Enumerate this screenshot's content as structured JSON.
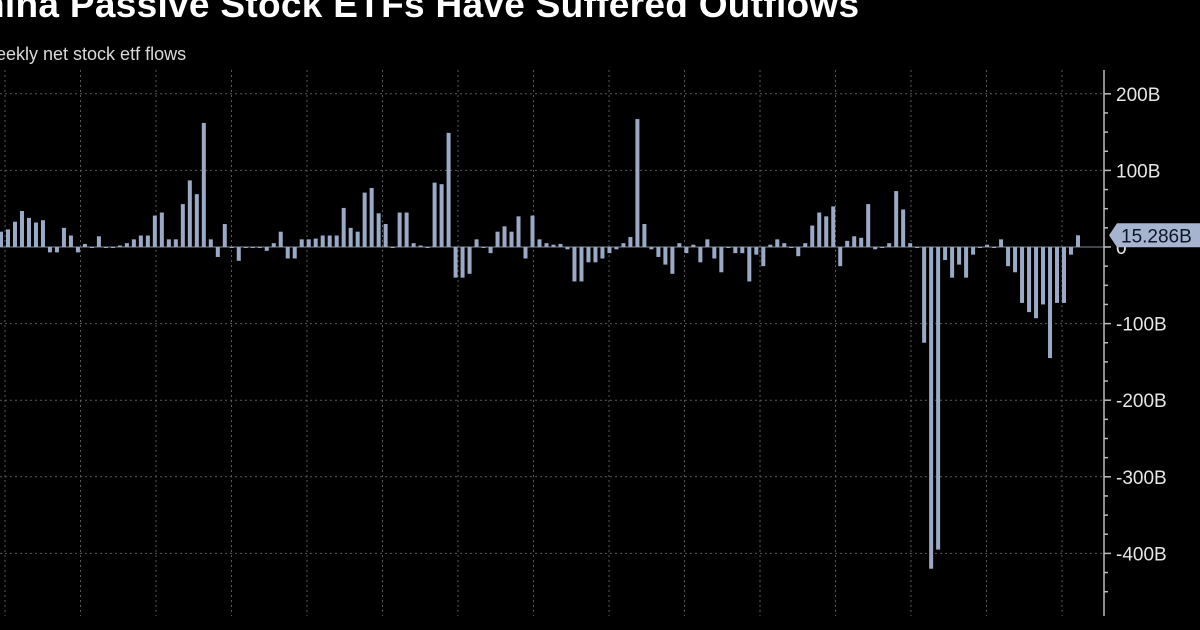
{
  "title": "hina Passive Stock ETFs Have Suffered Outflows",
  "subtitle": "eekly net stock etf flows",
  "chart_data": {
    "type": "bar",
    "title": "hina Passive Stock ETFs Have Suffered Outflows",
    "subtitle": "eekly net stock etf flows",
    "ylim": [
      -480,
      230
    ],
    "y_ticks": [
      {
        "value": 200,
        "label": "200B"
      },
      {
        "value": 100,
        "label": "100B"
      },
      {
        "value": 0,
        "label": "0"
      },
      {
        "value": -100,
        "label": "-100B"
      },
      {
        "value": -200,
        "label": "-200B"
      },
      {
        "value": -300,
        "label": "-300B"
      },
      {
        "value": -400,
        "label": "-400B"
      }
    ],
    "y_axis_side": "right",
    "grid": true,
    "bar_color": "#9aa9c6",
    "last_value_label": "15.286B",
    "values": [
      20,
      23,
      33,
      47,
      38,
      32,
      35,
      -7,
      -7,
      25,
      15,
      -7,
      4,
      0,
      14,
      0,
      0,
      2,
      5,
      10,
      15,
      15,
      41,
      45,
      10,
      10,
      56,
      87,
      69,
      162,
      10,
      -13,
      30,
      0,
      -18,
      0,
      0,
      0,
      -5,
      5,
      20,
      -15,
      -15,
      10,
      10,
      11,
      15,
      15,
      15,
      51,
      25,
      20,
      71,
      77,
      44,
      30,
      0,
      45,
      45,
      5,
      2,
      0,
      84,
      82,
      149,
      -40,
      -40,
      -35,
      10,
      0,
      -8,
      20,
      27,
      20,
      40,
      -15,
      41,
      10,
      5,
      3,
      4,
      -3,
      -45,
      -45,
      -20,
      -20,
      -15,
      -8,
      -3,
      5,
      13,
      167,
      30,
      -3,
      -13,
      -23,
      -35,
      5,
      -8,
      3,
      -20,
      10,
      -15,
      -33,
      0,
      -8,
      -8,
      -45,
      -10,
      -25,
      3,
      10,
      5,
      0,
      -12,
      5,
      28,
      45,
      40,
      53,
      -25,
      8,
      14,
      12,
      56,
      -3,
      0,
      5,
      73,
      49,
      5,
      0,
      -125,
      -420,
      -395,
      -17,
      -40,
      -23,
      -40,
      -10,
      0,
      3,
      0,
      10,
      -25,
      -33,
      -73,
      -85,
      -93,
      -75,
      -145,
      -73,
      -73,
      -10,
      15.286
    ]
  }
}
